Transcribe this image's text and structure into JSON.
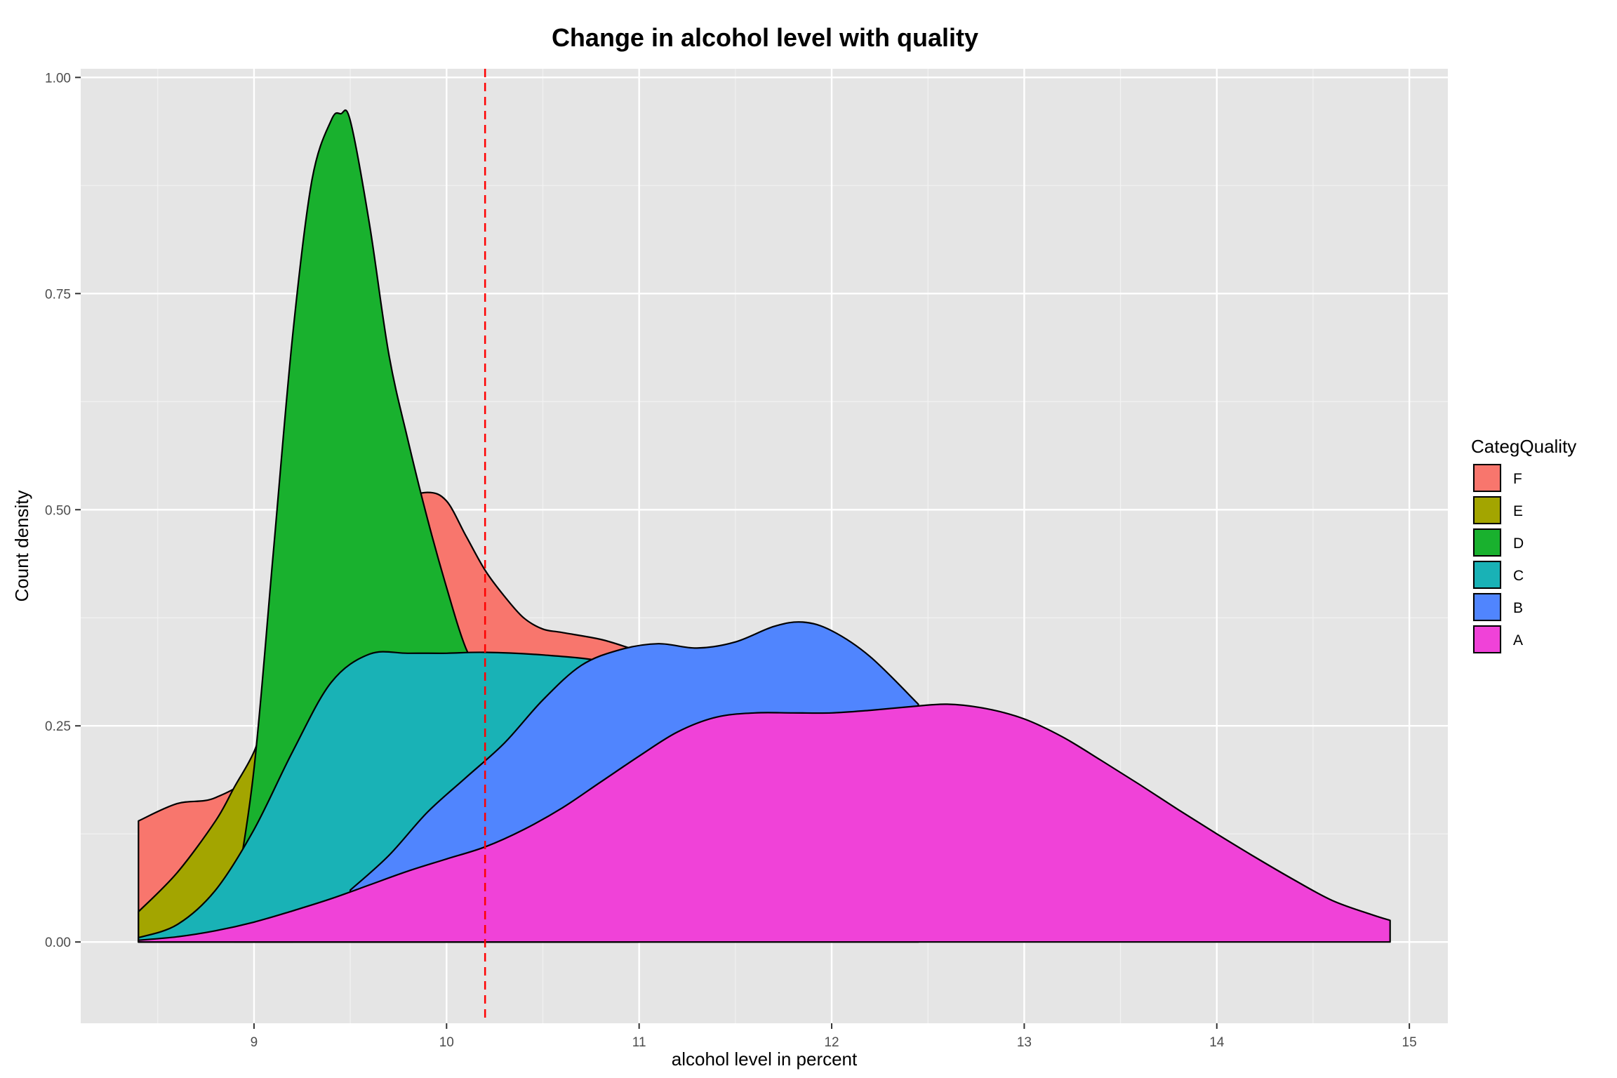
{
  "chart_data": {
    "type": "area",
    "title": "Change in alcohol level with quality",
    "xlabel": "alcohol level in percent",
    "ylabel": "Count density",
    "xlim": [
      8.1,
      15.2
    ],
    "ylim": [
      -0.094,
      1.01
    ],
    "x_ticks": [
      9,
      10,
      11,
      12,
      13,
      14,
      15
    ],
    "y_ticks": [
      0.0,
      0.25,
      0.5,
      0.75,
      1.0
    ],
    "x_tick_labels": [
      "9",
      "10",
      "11",
      "12",
      "13",
      "14",
      "15"
    ],
    "y_tick_labels": [
      "0.00",
      "0.25",
      "0.50",
      "0.75",
      "1.00"
    ],
    "grid": true,
    "background": "#e5e5e5",
    "vline": {
      "x": 10.2,
      "color": "#ff0000",
      "style": "dashed"
    },
    "legend": {
      "title": "CategQuality",
      "position": "right"
    },
    "series": [
      {
        "name": "F",
        "color": "#f8766d",
        "x": [
          8.4,
          8.6,
          8.8,
          9.0,
          9.2,
          9.4,
          9.6,
          9.75,
          9.9,
          10.0,
          10.1,
          10.2,
          10.3,
          10.4,
          10.5,
          10.6,
          10.8,
          10.95
        ],
        "y": [
          0.14,
          0.16,
          0.167,
          0.2,
          0.3,
          0.42,
          0.49,
          0.51,
          0.52,
          0.51,
          0.47,
          0.43,
          0.4,
          0.375,
          0.362,
          0.358,
          0.35,
          0.34
        ]
      },
      {
        "name": "E",
        "color": "#a3a500",
        "x": [
          8.4,
          8.6,
          8.8,
          8.9,
          9.0,
          9.1,
          9.2
        ],
        "y": [
          0.035,
          0.08,
          0.14,
          0.18,
          0.22,
          0.28,
          0.3
        ]
      },
      {
        "name": "D",
        "color": "#19b12e",
        "x": [
          8.9,
          9.0,
          9.1,
          9.2,
          9.3,
          9.4,
          9.45,
          9.5,
          9.6,
          9.7,
          9.8,
          9.9,
          10.0,
          10.1,
          10.2
        ],
        "y": [
          0.05,
          0.2,
          0.45,
          0.7,
          0.88,
          0.95,
          0.958,
          0.95,
          0.83,
          0.68,
          0.58,
          0.49,
          0.41,
          0.34,
          0.3
        ]
      },
      {
        "name": "C",
        "color": "#19b2b6",
        "x": [
          8.4,
          8.6,
          8.8,
          9.0,
          9.2,
          9.4,
          9.6,
          9.8,
          10.0,
          10.2,
          10.5,
          10.8,
          11.0
        ],
        "y": [
          0.005,
          0.02,
          0.06,
          0.13,
          0.22,
          0.3,
          0.333,
          0.334,
          0.334,
          0.335,
          0.332,
          0.325,
          0.31
        ]
      },
      {
        "name": "B",
        "color": "#5085fe",
        "x": [
          9.5,
          9.7,
          9.9,
          10.1,
          10.3,
          10.5,
          10.7,
          10.9,
          11.1,
          11.3,
          11.5,
          11.7,
          11.85,
          12.0,
          12.2,
          12.45
        ],
        "y": [
          0.06,
          0.1,
          0.15,
          0.19,
          0.23,
          0.28,
          0.32,
          0.338,
          0.345,
          0.34,
          0.347,
          0.365,
          0.37,
          0.36,
          0.33,
          0.275
        ]
      },
      {
        "name": "A",
        "color": "#f042d8",
        "x": [
          8.4,
          8.6,
          8.8,
          9.0,
          9.2,
          9.4,
          9.6,
          9.8,
          10.0,
          10.2,
          10.4,
          10.6,
          10.8,
          11.0,
          11.2,
          11.4,
          11.6,
          11.8,
          12.0,
          12.2,
          12.4,
          12.6,
          12.8,
          13.0,
          13.2,
          13.4,
          13.6,
          13.8,
          14.0,
          14.2,
          14.4,
          14.6,
          14.8,
          14.9
        ],
        "y": [
          0.002,
          0.006,
          0.013,
          0.023,
          0.036,
          0.05,
          0.066,
          0.082,
          0.096,
          0.11,
          0.13,
          0.155,
          0.185,
          0.215,
          0.243,
          0.26,
          0.265,
          0.265,
          0.265,
          0.268,
          0.272,
          0.275,
          0.27,
          0.258,
          0.237,
          0.21,
          0.182,
          0.153,
          0.125,
          0.098,
          0.072,
          0.048,
          0.032,
          0.025
        ]
      }
    ]
  }
}
